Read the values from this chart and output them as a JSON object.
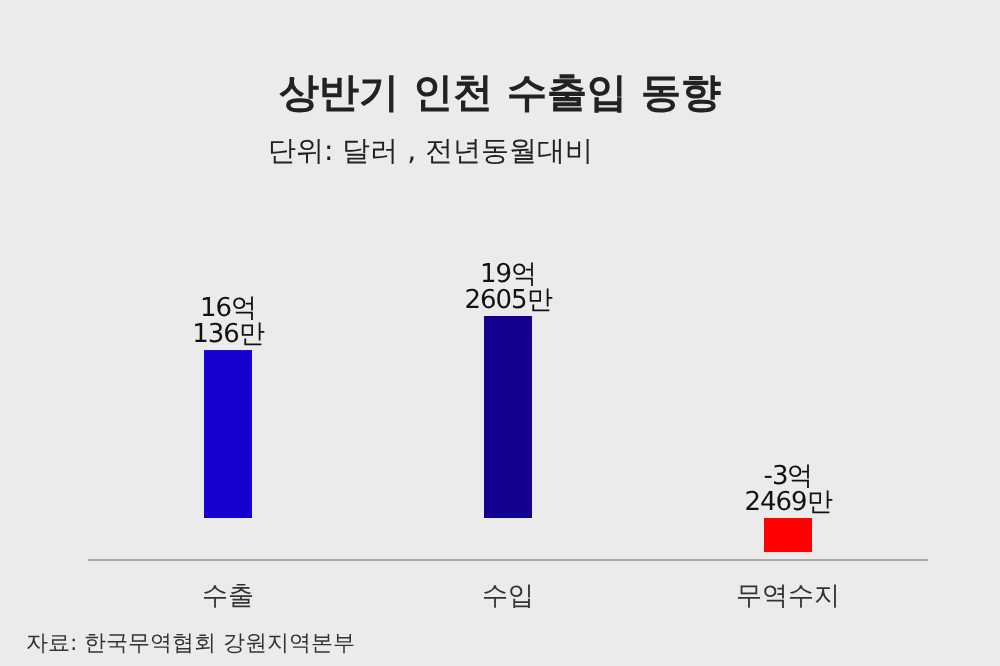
{
  "chart_data": {
    "type": "bar",
    "title": "상반기 인천 수출입 동향",
    "subtitle": "단위: 달러 , 전년동월대비",
    "categories": [
      "수출",
      "수입",
      "무역수지"
    ],
    "values": [
      16.0136,
      19.2605,
      -3.2469
    ],
    "colors": [
      "#1500d0",
      "#12008e",
      "#ff0000"
    ],
    "value_labels": [
      "16억\n136만",
      "19억\n2605만",
      "-3억\n2469만"
    ],
    "annotations": [
      "자료: 한국무역협회 강원지역본부"
    ]
  }
}
